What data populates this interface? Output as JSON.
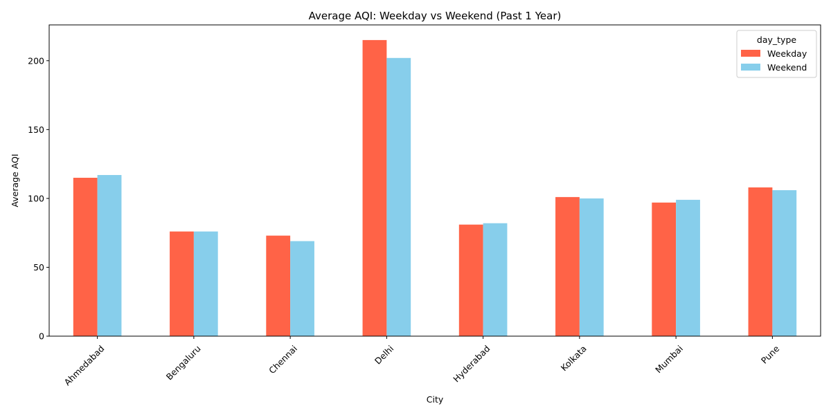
{
  "chart_data": {
    "type": "bar",
    "title": "Average AQI: Weekday vs Weekend (Past 1 Year)",
    "xlabel": "City",
    "ylabel": "Average AQI",
    "categories": [
      "Ahmedabad",
      "Bengaluru",
      "Chennai",
      "Delhi",
      "Hyderabad",
      "Kolkata",
      "Mumbai",
      "Pune"
    ],
    "series": [
      {
        "name": "Weekday",
        "color": "#FF6347",
        "values": [
          115,
          76,
          73,
          215,
          81,
          101,
          97,
          108
        ]
      },
      {
        "name": "Weekend",
        "color": "#87CEEB",
        "values": [
          117,
          76,
          69,
          202,
          82,
          100,
          99,
          106
        ]
      }
    ],
    "ylim": [
      0,
      226
    ],
    "yticks": [
      0,
      50,
      100,
      150,
      200
    ],
    "xtick_rotation": 45,
    "grid": false,
    "legend": {
      "title": "day_type",
      "position": "top-right"
    }
  }
}
